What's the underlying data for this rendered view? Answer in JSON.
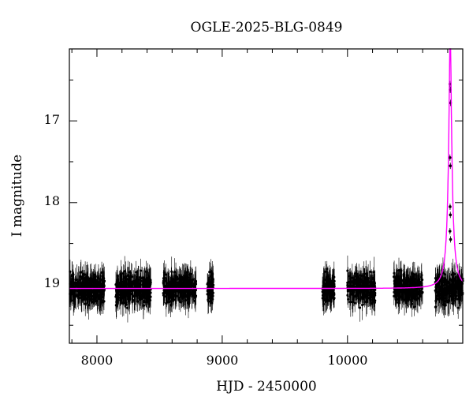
{
  "chart_data": {
    "type": "scatter",
    "title": "OGLE-2025-BLG-0849",
    "xlabel": "HJD - 2450000",
    "ylabel": "I magnitude",
    "xlim": [
      7780,
      10920
    ],
    "ylim": [
      19.72,
      16.12
    ],
    "y_inverted": true,
    "grid": false,
    "xticks_major": [
      8000,
      9000,
      10000
    ],
    "xtick_labels": [
      "8000",
      "9000",
      "10000"
    ],
    "yticks_major": [
      17,
      18,
      19
    ],
    "ytick_labels": [
      "17",
      "18",
      "19"
    ],
    "colors": {
      "data": "#000000",
      "model": "#ff00ff"
    },
    "observing_seasons": [
      {
        "start": 7785,
        "end": 8060,
        "median_mag": 19.05
      },
      {
        "start": 8150,
        "end": 8430,
        "median_mag": 19.05
      },
      {
        "start": 8530,
        "end": 8790,
        "median_mag": 19.05
      },
      {
        "start": 8880,
        "end": 8930,
        "median_mag": 19.05
      },
      {
        "start": 9800,
        "end": 9900,
        "median_mag": 19.05
      },
      {
        "start": 10000,
        "end": 10220,
        "median_mag": 19.05
      },
      {
        "start": 10370,
        "end": 10600,
        "median_mag": 19.05
      },
      {
        "start": 10700,
        "end": 10920,
        "median_mag": 19.05
      }
    ],
    "event_points": [
      {
        "x": 10818,
        "y": 16.55
      },
      {
        "x": 10820,
        "y": 16.62
      },
      {
        "x": 10822,
        "y": 16.78
      },
      {
        "x": 10818,
        "y": 17.45
      },
      {
        "x": 10821,
        "y": 17.55
      },
      {
        "x": 10819,
        "y": 18.05
      },
      {
        "x": 10821,
        "y": 18.15
      },
      {
        "x": 10818,
        "y": 18.35
      },
      {
        "x": 10823,
        "y": 18.45
      }
    ],
    "model": {
      "baseline_mag": 19.05,
      "peak_time": 10820,
      "peak_mag": 15.9,
      "time_scale": 7
    }
  }
}
